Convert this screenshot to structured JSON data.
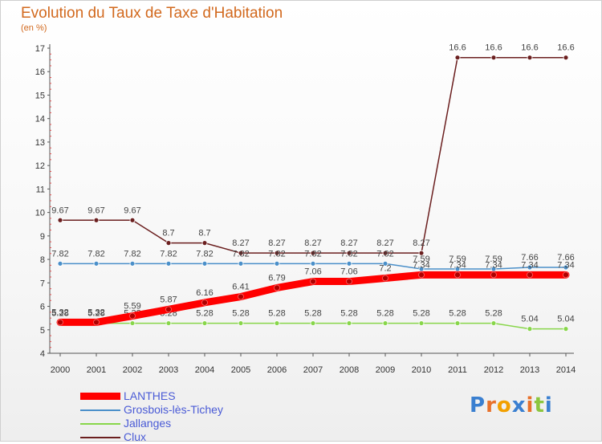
{
  "header": {
    "title": "Evolution du Taux de Taxe d'Habitation",
    "subtitle": "(en %)"
  },
  "chart_data": {
    "type": "line",
    "x": [
      "2000",
      "2001",
      "2002",
      "2003",
      "2004",
      "2005",
      "2006",
      "2007",
      "2008",
      "2009",
      "2010",
      "2011",
      "2012",
      "2013",
      "2014"
    ],
    "yticks": [
      4,
      5,
      6,
      7,
      8,
      9,
      10,
      11,
      12,
      13,
      14,
      15,
      16,
      17
    ],
    "ylim": [
      4,
      17
    ],
    "grid": false,
    "series": [
      {
        "name": "LANTHES",
        "color": "#ff0000",
        "values": [
          5.32,
          5.32,
          5.59,
          5.87,
          6.16,
          6.41,
          6.79,
          7.06,
          7.06,
          7.2,
          7.34,
          7.34,
          7.34,
          7.34,
          7.34
        ],
        "labels": [
          "5.32",
          "5.32",
          "5.59",
          "5.87",
          "6.16",
          "6.41",
          "6.79",
          "7.06",
          "7.06",
          "7.2",
          "7.34",
          "7.34",
          "7.34",
          "7.34",
          "7.34"
        ]
      },
      {
        "name": "Grosbois-lès-Tichey",
        "color": "#4a8fc9",
        "values": [
          7.82,
          7.82,
          7.82,
          7.82,
          7.82,
          7.82,
          7.82,
          7.82,
          7.82,
          7.82,
          7.59,
          7.59,
          7.59,
          7.66,
          7.66
        ],
        "labels": [
          "7.82",
          "7.82",
          "7.82",
          "7.82",
          "7.82",
          "7.82",
          "7.82",
          "7.82",
          "7.82",
          "7.82",
          "7.59",
          "7.59",
          "7.59",
          "7.66",
          "7.66"
        ]
      },
      {
        "name": "Jallanges",
        "color": "#88d64a",
        "values": [
          5.28,
          5.28,
          5.28,
          5.28,
          5.28,
          5.28,
          5.28,
          5.28,
          5.28,
          5.28,
          5.28,
          5.28,
          5.28,
          5.04,
          5.04
        ],
        "labels": [
          "5.28",
          "5.28",
          "5.28",
          "5.28",
          "5.28",
          "5.28",
          "5.28",
          "5.28",
          "5.28",
          "5.28",
          "5.28",
          "5.28",
          "5.28",
          "5.04",
          "5.04"
        ]
      },
      {
        "name": "Clux",
        "color": "#6b1f1f",
        "values": [
          9.67,
          9.67,
          9.67,
          8.7,
          8.7,
          8.27,
          8.27,
          8.27,
          8.27,
          8.27,
          8.27,
          16.6,
          16.6,
          16.6,
          16.6
        ],
        "labels": [
          "9.67",
          "9.67",
          "9.67",
          "8.7",
          "8.7",
          "8.27",
          "8.27",
          "8.27",
          "8.27",
          "8.27",
          "8.27",
          "16.6",
          "16.6",
          "16.6",
          "16.6"
        ]
      }
    ]
  },
  "legend": {
    "items": [
      {
        "label": "LANTHES",
        "color": "#ff0000"
      },
      {
        "label": "Grosbois-lès-Tichey",
        "color": "#4a8fc9"
      },
      {
        "label": "Jallanges",
        "color": "#88d64a"
      },
      {
        "label": "Clux",
        "color": "#6b1f1f"
      }
    ]
  },
  "logo": {
    "text": "Proxiti"
  }
}
